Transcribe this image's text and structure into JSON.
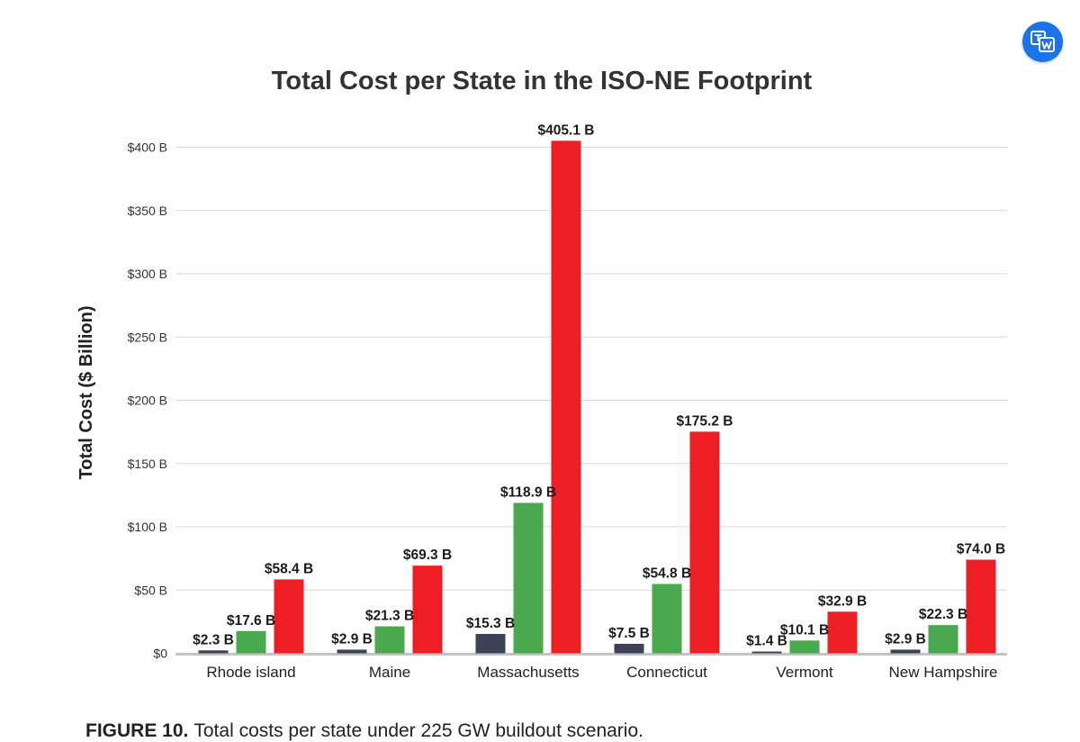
{
  "chart_data": {
    "type": "bar",
    "title": "Total Cost per State in the ISO-NE Footprint",
    "ylabel": "Total Cost ($ Billion)",
    "xlabel": "",
    "ylim": [
      0,
      400
    ],
    "yticks": [
      0,
      50,
      100,
      150,
      200,
      250,
      300,
      350,
      400
    ],
    "ytick_labels": [
      "$0",
      "$50 B",
      "$100 B",
      "$150 B",
      "$200 B",
      "$250 B",
      "$300 B",
      "$350 B",
      "$400 B"
    ],
    "grid": true,
    "categories": [
      "Rhode island",
      "Maine",
      "Massachusetts",
      "Connecticut",
      "Vermont",
      "New Hampshire"
    ],
    "series": [
      {
        "color": "#3d4256",
        "values": [
          2.3,
          2.9,
          15.3,
          7.5,
          1.4,
          2.9
        ],
        "labels": [
          "$2.3 B",
          "$2.9 B",
          "$15.3 B",
          "$7.5 B",
          "$1.4 B",
          "$2.9 B"
        ]
      },
      {
        "color": "#4aa84e",
        "values": [
          17.6,
          21.3,
          118.9,
          54.8,
          10.1,
          22.3
        ],
        "labels": [
          "$17.6 B",
          "$21.3 B",
          "$118.9 B",
          "$54.8 B",
          "$10.1 B",
          "$22.3 B"
        ]
      },
      {
        "color": "#ee1f24",
        "values": [
          58.4,
          69.3,
          405.1,
          175.2,
          32.9,
          74.0
        ],
        "labels": [
          "$58.4 B",
          "$69.3 B",
          "$405.1 B",
          "$175.2 B",
          "$32.9 B",
          "$74.0 B"
        ]
      }
    ]
  },
  "caption": {
    "tag": "FIGURE 10.",
    "text": "Total costs per state under 225 GW buildout scenario."
  },
  "colors": {
    "grid": "#d9d9d9",
    "baseline": "#c4c4c4",
    "translate_button": "#1a73e8"
  },
  "icons": {
    "translate": "translate-icon"
  }
}
